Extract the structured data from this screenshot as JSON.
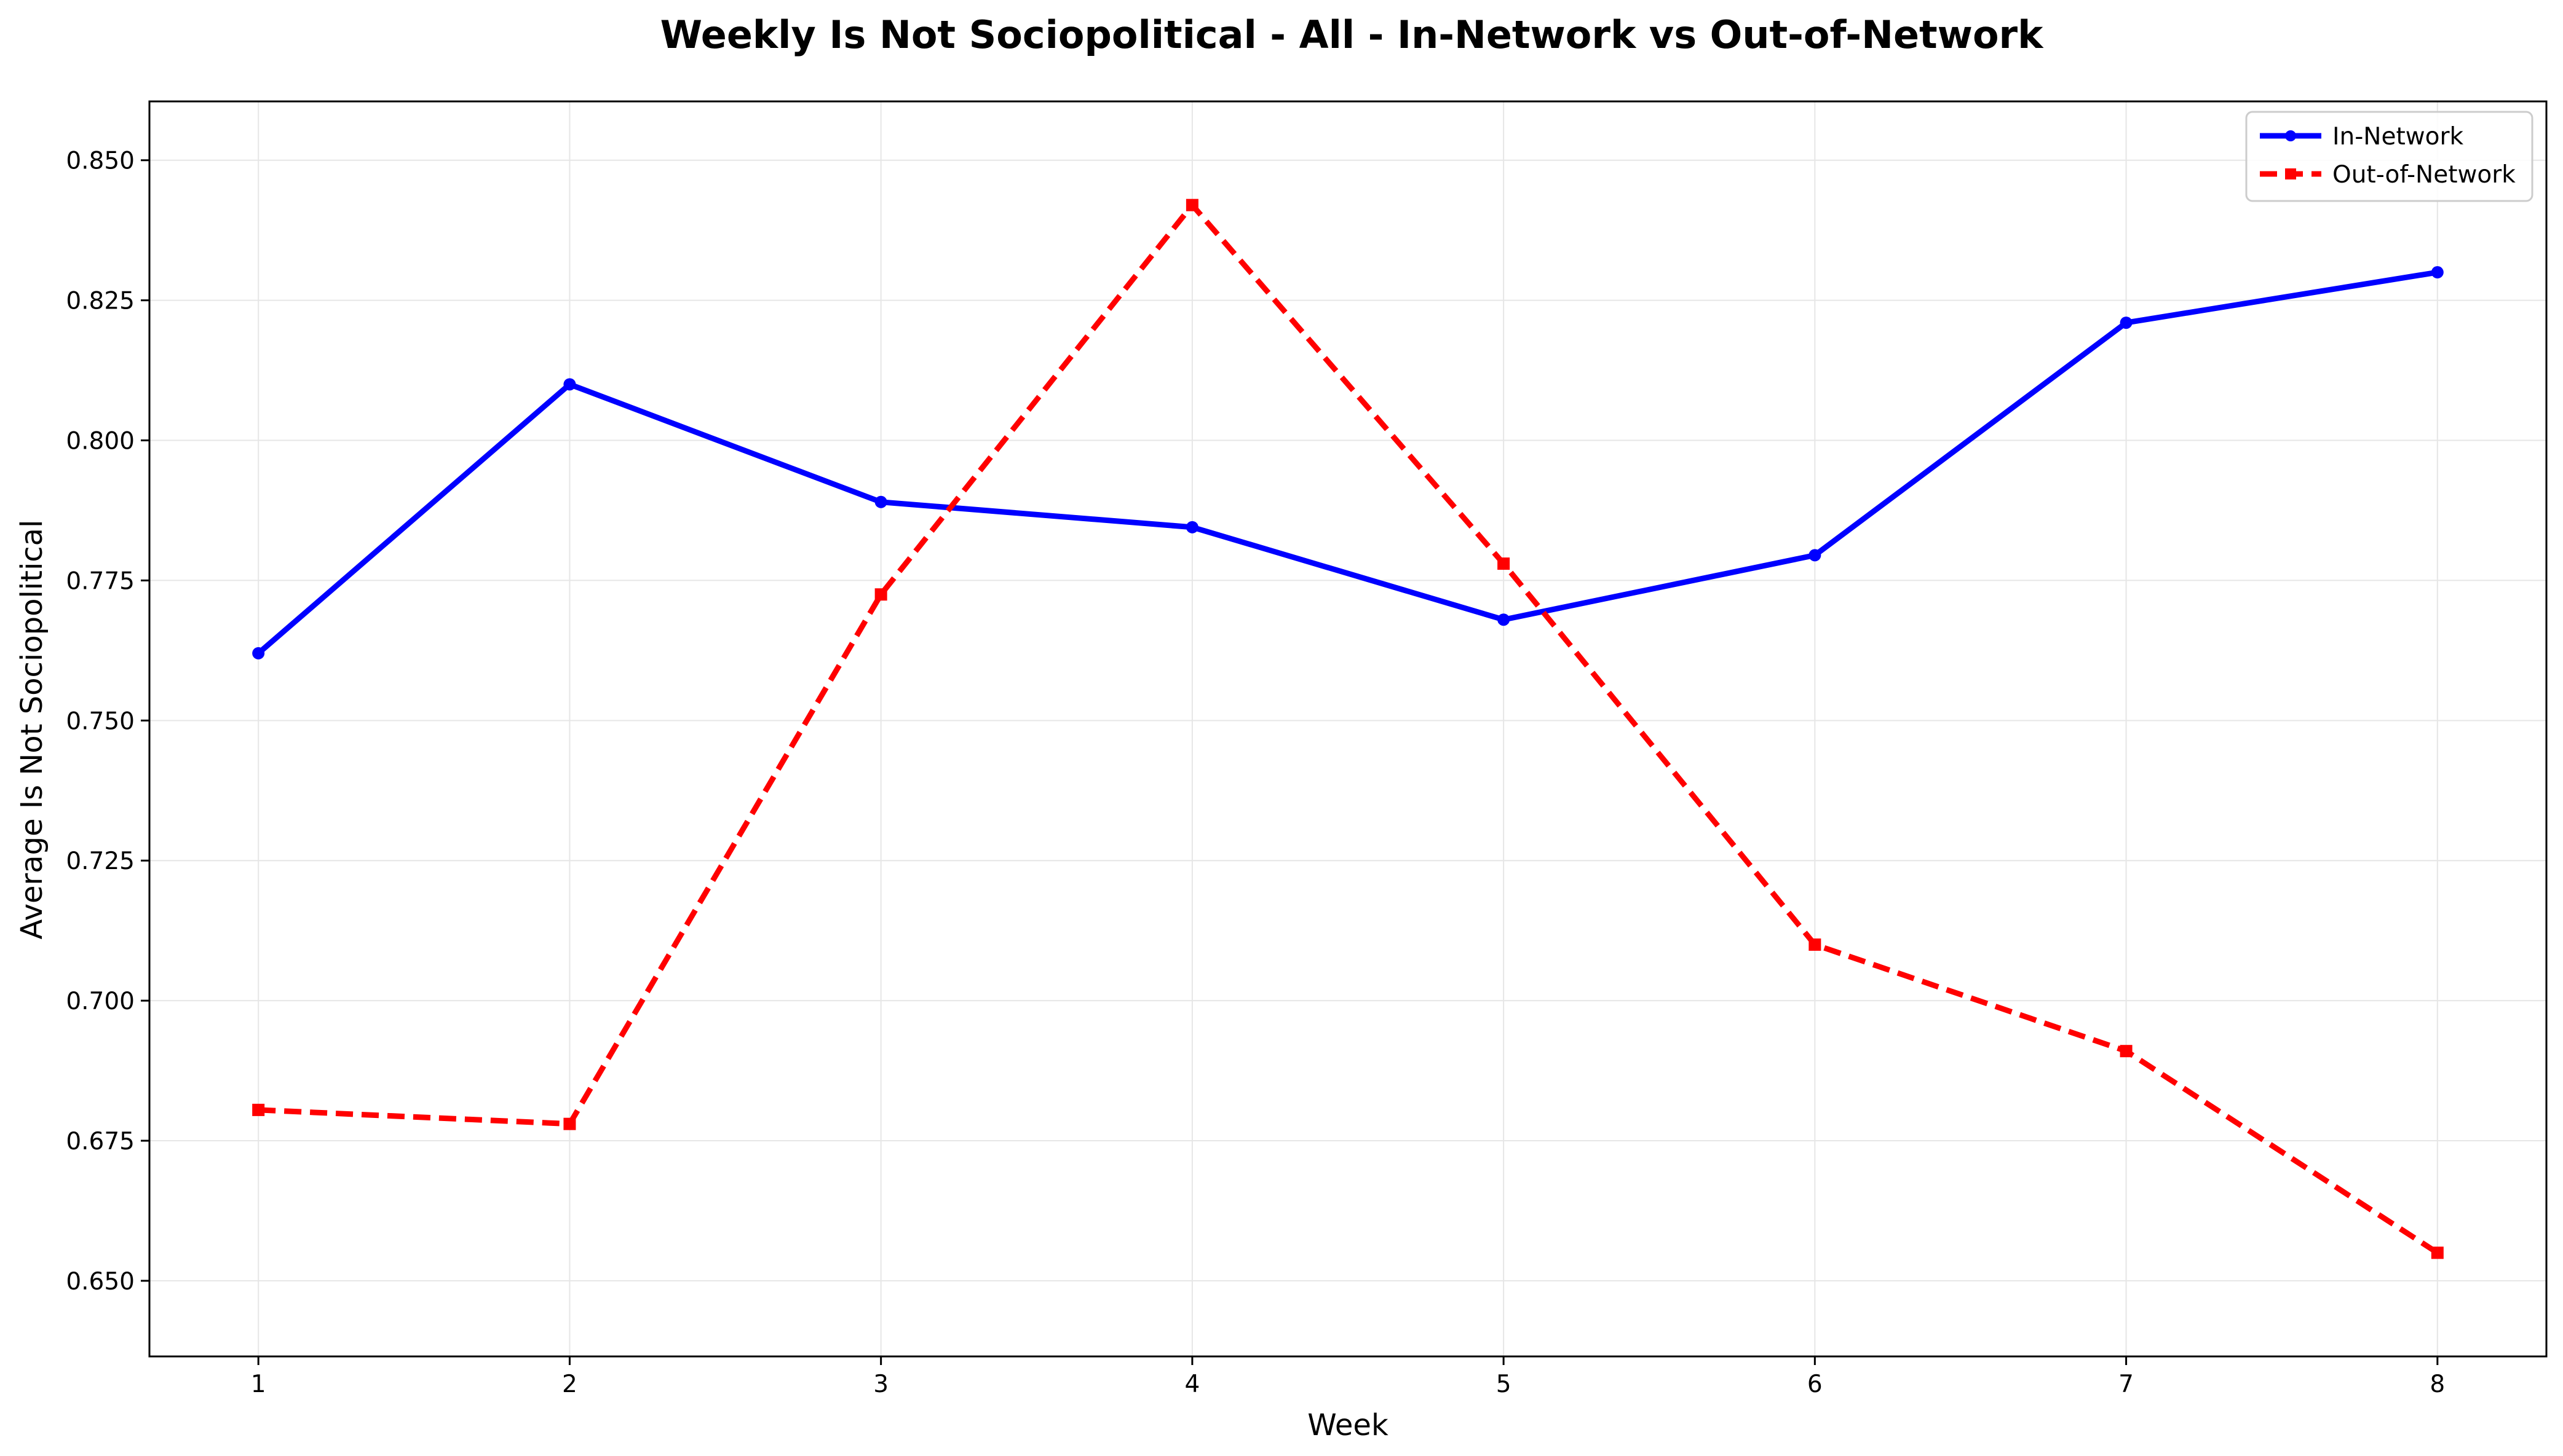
{
  "chart_data": {
    "type": "line",
    "title": "Weekly Is Not Sociopolitical - All - In-Network vs Out-of-Network",
    "xlabel": "Week",
    "ylabel": "Average Is Not Sociopolitical",
    "x": [
      1,
      2,
      3,
      4,
      5,
      6,
      7,
      8
    ],
    "xlim": [
      0.65,
      8.35
    ],
    "ylim": [
      0.6365,
      0.8605
    ],
    "yticks": [
      "0.650",
      "0.675",
      "0.700",
      "0.725",
      "0.750",
      "0.775",
      "0.800",
      "0.825",
      "0.850"
    ],
    "xticks": [
      "1",
      "2",
      "3",
      "4",
      "5",
      "6",
      "7",
      "8"
    ],
    "grid": true,
    "legend_position": "top-right",
    "series": [
      {
        "name": "In-Network",
        "color": "#0000ff",
        "line_style": "solid",
        "marker": "circle",
        "values": [
          0.762,
          0.81,
          0.789,
          0.7845,
          0.768,
          0.7795,
          0.821,
          0.83
        ]
      },
      {
        "name": "Out-of-Network",
        "color": "#ff0000",
        "line_style": "dashed",
        "marker": "square",
        "values": [
          0.6805,
          0.678,
          0.7725,
          0.842,
          0.778,
          0.71,
          0.691,
          0.655
        ]
      }
    ]
  }
}
